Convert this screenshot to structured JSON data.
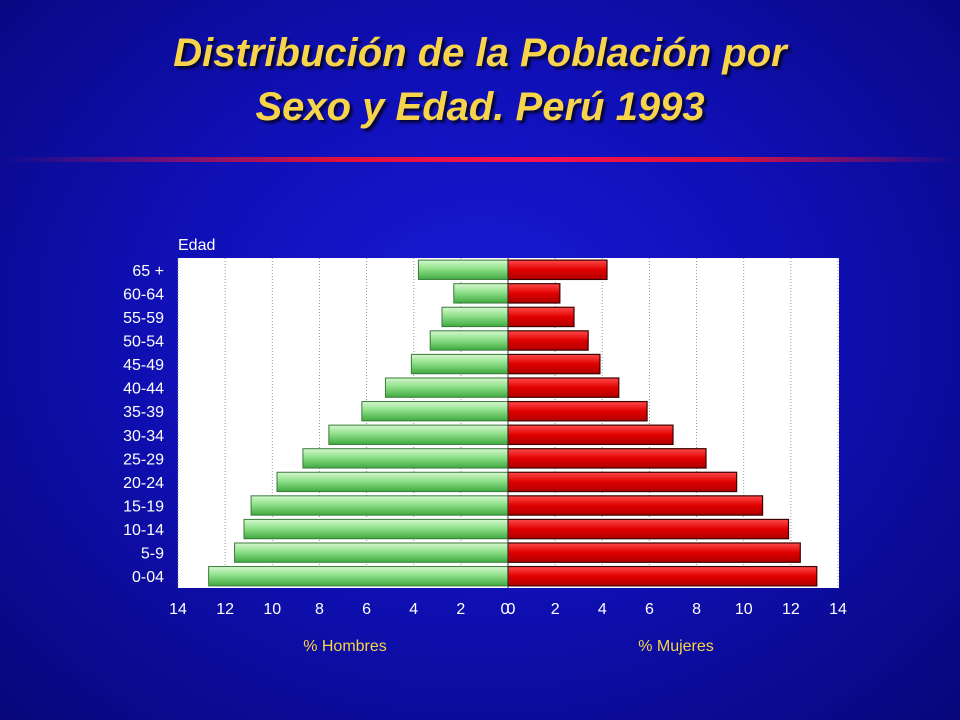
{
  "title": {
    "line1": "Distribución de la Población por",
    "line2": "Sexo y Edad.  Perú 1993"
  },
  "colors": {
    "male": "#66cc66",
    "female": "#e00000",
    "title": "#f7d44a"
  },
  "chart_data": {
    "type": "bar",
    "orientation": "horizontal",
    "layout": "population-pyramid",
    "ylabel": "Edad",
    "left_axis_label": "% Hombres",
    "right_axis_label": "% Mujeres",
    "categories": [
      "65 +",
      "60-64",
      "55-59",
      "50-54",
      "45-49",
      "40-44",
      "35-39",
      "30-34",
      "25-29",
      "20-24",
      "15-19",
      "10-14",
      "5-9",
      "0-04"
    ],
    "series": [
      {
        "name": "% Hombres",
        "side": "left",
        "values": [
          3.8,
          2.3,
          2.8,
          3.3,
          4.1,
          5.2,
          6.2,
          7.6,
          8.7,
          9.8,
          10.9,
          11.2,
          11.6,
          12.7
        ]
      },
      {
        "name": "% Mujeres",
        "side": "right",
        "values": [
          4.2,
          2.2,
          2.8,
          3.4,
          3.9,
          4.7,
          5.9,
          7.0,
          8.4,
          9.7,
          10.8,
          11.9,
          12.4,
          13.1
        ]
      }
    ],
    "xlim": [
      0,
      14
    ],
    "xticks": [
      "14",
      "12",
      "10",
      "8",
      "6",
      "4",
      "2",
      "0",
      "0",
      "2",
      "4",
      "6",
      "8",
      "10",
      "12",
      "14"
    ],
    "grid": true
  }
}
